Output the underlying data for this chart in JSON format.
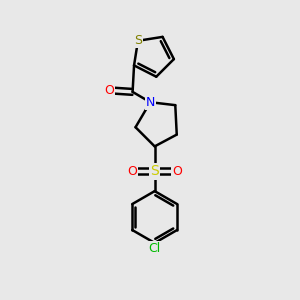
{
  "background_color": "#e8e8e8",
  "bond_color": "#000000",
  "bond_width": 1.8,
  "atom_colors": {
    "S_thiophene": "#808000",
    "S_sulfonyl": "#cccc00",
    "N": "#0000ff",
    "O": "#ff0000",
    "Cl": "#00bb00",
    "C": "#000000"
  },
  "font_size": 9
}
